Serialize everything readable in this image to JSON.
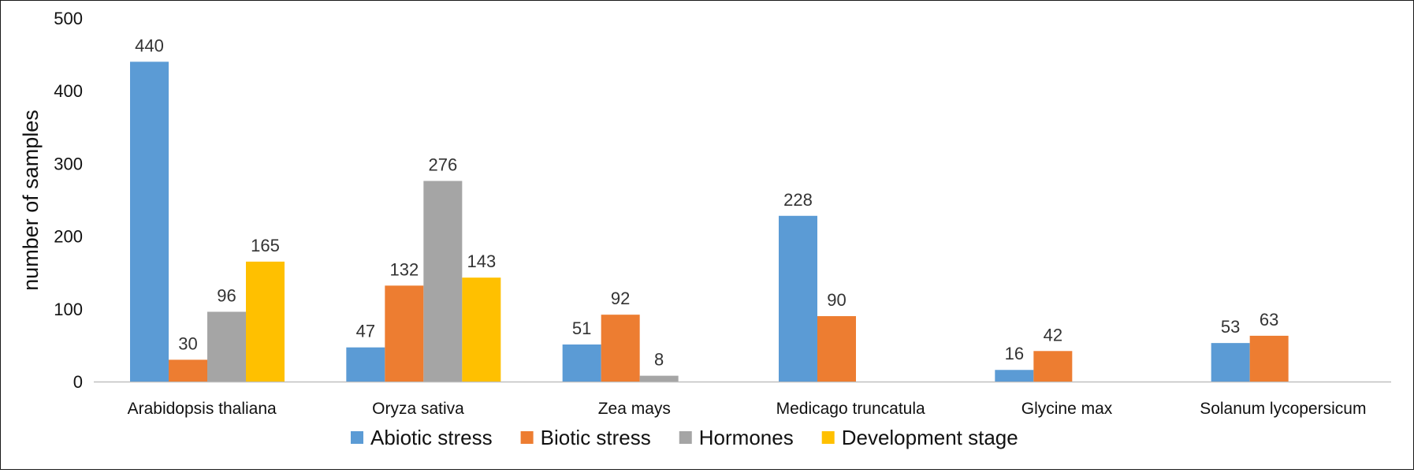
{
  "chart_data": {
    "type": "bar",
    "title": "",
    "xlabel": "",
    "ylabel": "number of samples",
    "ylim": [
      0,
      500
    ],
    "yticks": [
      0,
      100,
      200,
      300,
      400,
      500
    ],
    "grid": false,
    "legend_position": "bottom",
    "categories": [
      "Arabidopsis thaliana",
      "Oryza sativa",
      "Zea mays",
      "Medicago truncatula",
      "Glycine max",
      "Solanum lycopersicum"
    ],
    "series": [
      {
        "name": "Abiotic stress",
        "color": "#5B9BD5",
        "values": [
          440,
          47,
          51,
          228,
          16,
          53
        ]
      },
      {
        "name": "Biotic stress",
        "color": "#ED7D31",
        "values": [
          30,
          132,
          92,
          90,
          42,
          63
        ]
      },
      {
        "name": "Hormones",
        "color": "#A5A5A5",
        "values": [
          96,
          276,
          8,
          null,
          null,
          null
        ]
      },
      {
        "name": "Development stage",
        "color": "#FFC000",
        "values": [
          165,
          143,
          null,
          null,
          null,
          null
        ]
      }
    ]
  }
}
